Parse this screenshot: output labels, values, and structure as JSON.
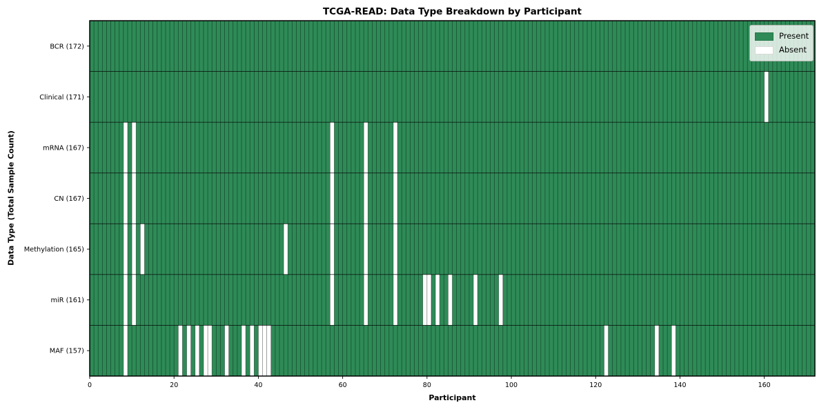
{
  "chart_data": {
    "type": "heatmap",
    "title": "TCGA-READ: Data Type Breakdown by Participant",
    "xlabel": "Participant",
    "ylabel": "Data Type (Total Sample Count)",
    "x_ticks": [
      0,
      20,
      40,
      60,
      80,
      100,
      120,
      140,
      160
    ],
    "x_range": [
      0,
      172
    ],
    "n_participants": 172,
    "grid": true,
    "legend_position": "upper right",
    "colors": {
      "present": "#2e8b57",
      "absent": "#ffffff",
      "grid_line": "#000000"
    },
    "legend_items": [
      {
        "label": "Present",
        "color": "#2e8b57"
      },
      {
        "label": "Absent",
        "color": "#ffffff"
      }
    ],
    "rows": [
      {
        "label": "BCR (172)",
        "data_type": "BCR",
        "total_samples": 172,
        "absent_participants": []
      },
      {
        "label": "Clinical (171)",
        "data_type": "Clinical",
        "total_samples": 171,
        "absent_participants": [
          160
        ]
      },
      {
        "label": "mRNA (167)",
        "data_type": "mRNA",
        "total_samples": 167,
        "absent_participants": [
          8,
          10,
          57,
          65,
          72
        ]
      },
      {
        "label": "CN (167)",
        "data_type": "CN",
        "total_samples": 167,
        "absent_participants": [
          8,
          10,
          57,
          65,
          72
        ]
      },
      {
        "label": "Methylation (165)",
        "data_type": "Methylation",
        "total_samples": 165,
        "absent_participants": [
          8,
          10,
          12,
          46,
          57,
          65,
          72
        ]
      },
      {
        "label": "miR (161)",
        "data_type": "miR",
        "total_samples": 161,
        "absent_participants": [
          8,
          10,
          57,
          65,
          72,
          79,
          80,
          82,
          85,
          91,
          97
        ]
      },
      {
        "label": "MAF (157)",
        "data_type": "MAF",
        "total_samples": 157,
        "absent_participants": [
          8,
          21,
          23,
          25,
          27,
          28,
          32,
          36,
          38,
          40,
          41,
          42,
          122,
          134,
          138
        ]
      }
    ]
  }
}
